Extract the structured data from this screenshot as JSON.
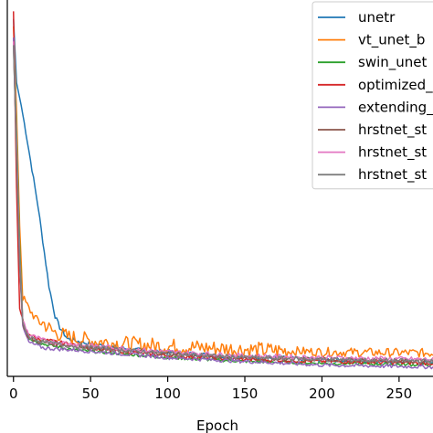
{
  "chart_data": {
    "type": "line",
    "xlabel": "Epoch",
    "ylabel": "",
    "xlim": [
      -4,
      272
    ],
    "ylim": [
      0.0,
      1.0
    ],
    "x_ticks": [
      0,
      50,
      100,
      150,
      200,
      250
    ],
    "x_tick_labels": [
      "0",
      "50",
      "100",
      "150",
      "200",
      "250"
    ],
    "legend": {
      "placement": "top-right",
      "entries": [
        "unetr",
        "vt_unet_b",
        "swin_unet",
        "optimized_",
        "extending_",
        "hrstnet_st",
        "hrstnet_st",
        "hrstnet_st"
      ]
    },
    "series": [
      {
        "name": "unetr",
        "color": "#1f77b4",
        "points": [
          [
            0,
            0.95
          ],
          [
            2,
            0.78
          ],
          [
            5,
            0.72
          ],
          [
            8,
            0.65
          ],
          [
            12,
            0.55
          ],
          [
            16,
            0.45
          ],
          [
            20,
            0.33
          ],
          [
            23,
            0.24
          ],
          [
            27,
            0.16
          ],
          [
            30,
            0.13
          ],
          [
            35,
            0.1
          ],
          [
            45,
            0.09
          ],
          [
            60,
            0.08
          ],
          [
            80,
            0.07
          ],
          [
            100,
            0.065
          ],
          [
            130,
            0.055
          ],
          [
            160,
            0.05
          ],
          [
            200,
            0.045
          ],
          [
            240,
            0.04
          ],
          [
            272,
            0.038
          ]
        ],
        "noise": 0.006,
        "spiky_start": 0
      },
      {
        "name": "vt_unet_b",
        "color": "#ff7f0e",
        "points": [
          [
            0,
            0.93
          ],
          [
            2,
            0.7
          ],
          [
            4,
            0.4
          ],
          [
            6,
            0.21
          ],
          [
            10,
            0.18
          ],
          [
            15,
            0.15
          ],
          [
            20,
            0.14
          ],
          [
            25,
            0.12
          ],
          [
            35,
            0.105
          ],
          [
            50,
            0.095
          ],
          [
            75,
            0.085
          ],
          [
            100,
            0.08
          ],
          [
            130,
            0.075
          ],
          [
            160,
            0.07
          ],
          [
            200,
            0.065
          ],
          [
            240,
            0.063
          ],
          [
            272,
            0.062
          ]
        ],
        "noise": 0.012,
        "spiky_start": 15
      },
      {
        "name": "swin_unet",
        "color": "#2ca02c",
        "points": [
          [
            0,
            0.9
          ],
          [
            2,
            0.65
          ],
          [
            4,
            0.35
          ],
          [
            6,
            0.15
          ],
          [
            10,
            0.1
          ],
          [
            20,
            0.085
          ],
          [
            40,
            0.07
          ],
          [
            70,
            0.06
          ],
          [
            100,
            0.05
          ],
          [
            150,
            0.04
          ],
          [
            200,
            0.035
          ],
          [
            272,
            0.03
          ]
        ],
        "noise": 0.004,
        "spiky_start": 0
      },
      {
        "name": "optimized_",
        "color": "#d62728",
        "points": [
          [
            0,
            0.97
          ],
          [
            2,
            0.5
          ],
          [
            4,
            0.18
          ],
          [
            8,
            0.12
          ],
          [
            15,
            0.1
          ],
          [
            30,
            0.09
          ],
          [
            60,
            0.07
          ],
          [
            100,
            0.055
          ],
          [
            150,
            0.045
          ],
          [
            200,
            0.04
          ],
          [
            272,
            0.035
          ]
        ],
        "noise": 0.005,
        "spiky_start": 0
      },
      {
        "name": "extending_",
        "color": "#9467bd",
        "points": [
          [
            0,
            0.9
          ],
          [
            2,
            0.6
          ],
          [
            4,
            0.3
          ],
          [
            6,
            0.13
          ],
          [
            10,
            0.09
          ],
          [
            20,
            0.075
          ],
          [
            40,
            0.07
          ],
          [
            70,
            0.06
          ],
          [
            100,
            0.05
          ],
          [
            150,
            0.04
          ],
          [
            200,
            0.03
          ],
          [
            272,
            0.025
          ]
        ],
        "noise": 0.005,
        "spiky_start": 0
      },
      {
        "name": "hrstnet_st",
        "color": "#8c564b",
        "points": [
          [
            0,
            0.88
          ],
          [
            2,
            0.6
          ],
          [
            4,
            0.3
          ],
          [
            6,
            0.14
          ],
          [
            10,
            0.1
          ],
          [
            20,
            0.09
          ],
          [
            40,
            0.08
          ],
          [
            70,
            0.07
          ],
          [
            100,
            0.06
          ],
          [
            150,
            0.05
          ],
          [
            200,
            0.045
          ],
          [
            272,
            0.04
          ]
        ],
        "noise": 0.006,
        "spiky_start": 0
      },
      {
        "name": "hrstnet_st",
        "color": "#e377c2",
        "points": [
          [
            0,
            0.89
          ],
          [
            2,
            0.62
          ],
          [
            4,
            0.32
          ],
          [
            6,
            0.15
          ],
          [
            10,
            0.11
          ],
          [
            20,
            0.095
          ],
          [
            40,
            0.085
          ],
          [
            70,
            0.075
          ],
          [
            100,
            0.065
          ],
          [
            150,
            0.055
          ],
          [
            200,
            0.05
          ],
          [
            272,
            0.045
          ]
        ],
        "noise": 0.006,
        "spiky_start": 0
      },
      {
        "name": "hrstnet_st",
        "color": "#7f7f7f",
        "points": [
          [
            0,
            0.88
          ],
          [
            2,
            0.6
          ],
          [
            4,
            0.31
          ],
          [
            6,
            0.14
          ],
          [
            10,
            0.105
          ],
          [
            20,
            0.09
          ],
          [
            40,
            0.08
          ],
          [
            70,
            0.07
          ],
          [
            100,
            0.06
          ],
          [
            150,
            0.05
          ],
          [
            200,
            0.045
          ],
          [
            272,
            0.04
          ]
        ],
        "noise": 0.006,
        "spiky_start": 0
      }
    ]
  }
}
